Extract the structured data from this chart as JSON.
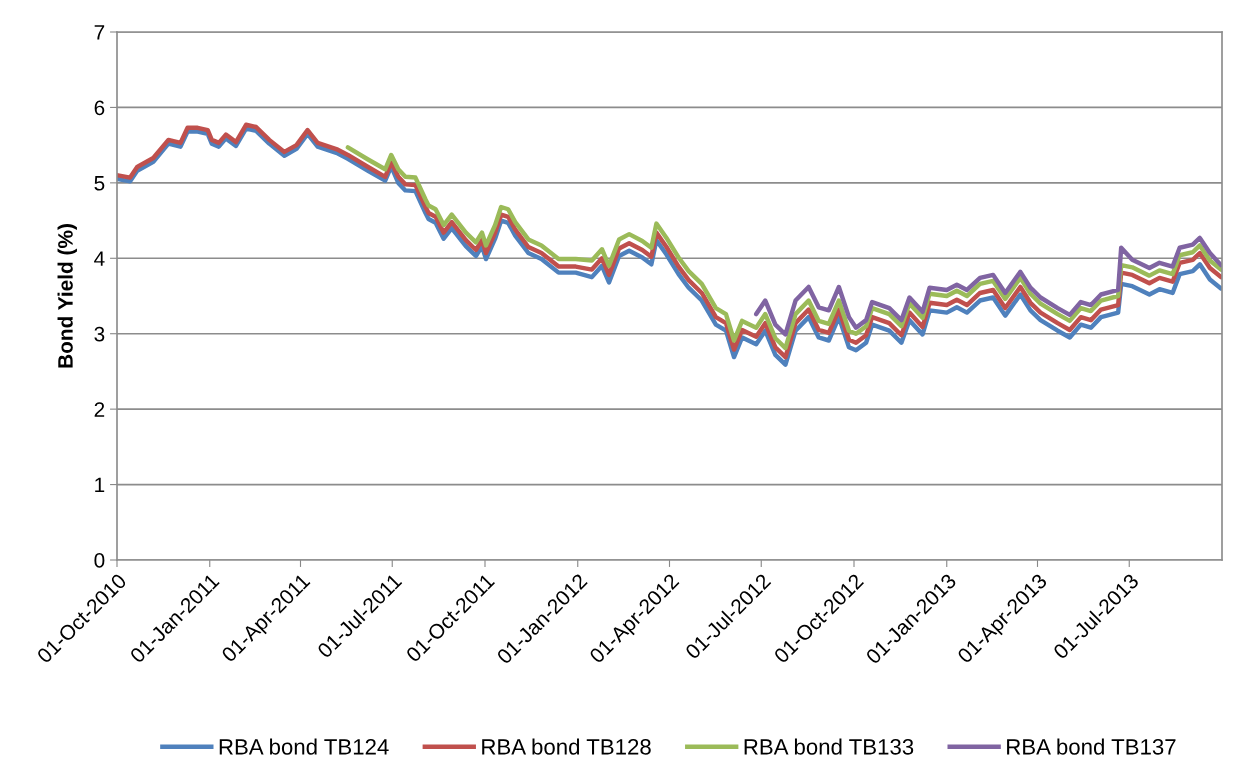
{
  "chart_data": {
    "type": "line",
    "ylabel": "Bond Yield (%)",
    "x": [
      "2010-10-02",
      "2010-10-14",
      "2010-10-21",
      "2010-11-06",
      "2010-11-21",
      "2010-12-03",
      "2010-12-10",
      "2010-12-20",
      "2010-12-30",
      "2011-01-03",
      "2011-01-10",
      "2011-01-17",
      "2011-01-27",
      "2011-02-06",
      "2011-02-16",
      "2011-03-01",
      "2011-03-16",
      "2011-03-28",
      "2011-04-08",
      "2011-04-18",
      "2011-05-08",
      "2011-05-18",
      "2011-06-07",
      "2011-06-24",
      "2011-06-30",
      "2011-07-07",
      "2011-07-14",
      "2011-07-24",
      "2011-08-03",
      "2011-08-06",
      "2011-08-13",
      "2011-08-21",
      "2011-08-29",
      "2011-09-12",
      "2011-09-22",
      "2011-09-28",
      "2011-10-02",
      "2011-10-11",
      "2011-10-17",
      "2011-10-24",
      "2011-10-31",
      "2011-11-13",
      "2011-11-26",
      "2011-12-13",
      "2011-12-30",
      "2012-01-15",
      "2012-01-25",
      "2012-02-01",
      "2012-02-11",
      "2012-02-21",
      "2012-03-05",
      "2012-03-14",
      "2012-03-19",
      "2012-03-29",
      "2012-04-10",
      "2012-04-20",
      "2012-05-03",
      "2012-05-17",
      "2012-05-27",
      "2012-06-04",
      "2012-06-12",
      "2012-06-26",
      "2012-07-05",
      "2012-07-15",
      "2012-07-25",
      "2012-08-04",
      "2012-08-17",
      "2012-08-27",
      "2012-09-06",
      "2012-09-16",
      "2012-09-26",
      "2012-10-03",
      "2012-10-13",
      "2012-10-19",
      "2012-11-05",
      "2012-11-17",
      "2012-11-25",
      "2012-12-08",
      "2012-12-15",
      "2013-01-01",
      "2013-01-11",
      "2013-01-21",
      "2013-02-03",
      "2013-02-16",
      "2013-02-28",
      "2013-03-15",
      "2013-03-25",
      "2013-04-04",
      "2013-04-21",
      "2013-05-03",
      "2013-05-14",
      "2013-05-24",
      "2013-06-03",
      "2013-06-20",
      "2013-06-23",
      "2013-07-04",
      "2013-07-21",
      "2013-07-31",
      "2013-08-13",
      "2013-08-20",
      "2013-09-02",
      "2013-09-09",
      "2013-09-19",
      "2013-09-30"
    ],
    "series": [
      {
        "name": "RBA bond TB124",
        "color": "#4f81bd",
        "values": [
          5.05,
          5.02,
          5.16,
          5.28,
          5.52,
          5.48,
          5.68,
          5.68,
          5.65,
          5.52,
          5.48,
          5.59,
          5.49,
          5.72,
          5.69,
          5.52,
          5.36,
          5.45,
          5.65,
          5.48,
          5.39,
          5.32,
          5.16,
          5.03,
          5.22,
          5.0,
          4.9,
          4.89,
          4.6,
          4.52,
          4.47,
          4.26,
          4.4,
          4.16,
          4.03,
          4.16,
          3.99,
          4.26,
          4.5,
          4.47,
          4.3,
          4.07,
          3.99,
          3.81,
          3.81,
          3.75,
          3.9,
          3.68,
          4.03,
          4.1,
          4.01,
          3.92,
          4.24,
          4.05,
          3.79,
          3.61,
          3.44,
          3.12,
          3.04,
          2.69,
          2.95,
          2.86,
          3.04,
          2.72,
          2.59,
          3.04,
          3.22,
          2.95,
          2.91,
          3.22,
          2.82,
          2.78,
          2.88,
          3.12,
          3.04,
          2.88,
          3.18,
          2.99,
          3.31,
          3.28,
          3.35,
          3.28,
          3.44,
          3.48,
          3.24,
          3.52,
          3.31,
          3.18,
          3.04,
          2.95,
          3.12,
          3.08,
          3.22,
          3.28,
          3.66,
          3.63,
          3.52,
          3.59,
          3.54,
          3.79,
          3.83,
          3.92,
          3.72,
          3.6
        ]
      },
      {
        "name": "RBA bond TB128",
        "color": "#c0504d",
        "values": [
          5.1,
          5.07,
          5.21,
          5.33,
          5.57,
          5.53,
          5.73,
          5.73,
          5.7,
          5.57,
          5.53,
          5.64,
          5.54,
          5.77,
          5.74,
          5.57,
          5.41,
          5.5,
          5.7,
          5.53,
          5.44,
          5.37,
          5.21,
          5.08,
          5.27,
          5.08,
          4.98,
          4.97,
          4.68,
          4.6,
          4.55,
          4.34,
          4.48,
          4.24,
          4.11,
          4.24,
          4.07,
          4.34,
          4.58,
          4.55,
          4.38,
          4.15,
          4.07,
          3.89,
          3.89,
          3.85,
          4.0,
          3.78,
          4.13,
          4.2,
          4.11,
          4.02,
          4.34,
          4.15,
          3.89,
          3.71,
          3.54,
          3.22,
          3.14,
          2.79,
          3.05,
          2.96,
          3.14,
          2.82,
          2.69,
          3.14,
          3.32,
          3.05,
          3.01,
          3.32,
          2.92,
          2.88,
          2.98,
          3.22,
          3.14,
          2.98,
          3.28,
          3.09,
          3.41,
          3.38,
          3.45,
          3.38,
          3.54,
          3.58,
          3.34,
          3.62,
          3.41,
          3.28,
          3.14,
          3.05,
          3.22,
          3.18,
          3.32,
          3.38,
          3.81,
          3.78,
          3.67,
          3.74,
          3.69,
          3.94,
          3.98,
          4.07,
          3.87,
          3.75
        ]
      },
      {
        "name": "RBA bond TB133",
        "color": "#9bbb59",
        "values": [
          null,
          null,
          null,
          null,
          null,
          null,
          null,
          null,
          null,
          null,
          null,
          null,
          null,
          null,
          null,
          null,
          null,
          null,
          null,
          null,
          null,
          5.47,
          5.31,
          5.18,
          5.37,
          5.18,
          5.08,
          5.07,
          4.78,
          4.7,
          4.65,
          4.44,
          4.58,
          4.34,
          4.21,
          4.34,
          4.17,
          4.44,
          4.68,
          4.65,
          4.48,
          4.25,
          4.17,
          3.99,
          3.99,
          3.97,
          4.12,
          3.9,
          4.25,
          4.32,
          4.23,
          4.14,
          4.46,
          4.27,
          4.01,
          3.83,
          3.66,
          3.34,
          3.26,
          2.91,
          3.17,
          3.08,
          3.26,
          2.94,
          2.81,
          3.26,
          3.44,
          3.17,
          3.13,
          3.44,
          3.04,
          3.0,
          3.1,
          3.34,
          3.26,
          3.1,
          3.4,
          3.21,
          3.53,
          3.5,
          3.57,
          3.5,
          3.66,
          3.7,
          3.46,
          3.74,
          3.53,
          3.4,
          3.26,
          3.17,
          3.34,
          3.3,
          3.44,
          3.5,
          3.91,
          3.88,
          3.77,
          3.84,
          3.79,
          4.04,
          4.08,
          4.17,
          3.97,
          3.85
        ]
      },
      {
        "name": "RBA bond TB137",
        "color": "#8064a2",
        "values": [
          null,
          null,
          null,
          null,
          null,
          null,
          null,
          null,
          null,
          null,
          null,
          null,
          null,
          null,
          null,
          null,
          null,
          null,
          null,
          null,
          null,
          null,
          null,
          null,
          null,
          null,
          null,
          null,
          null,
          null,
          null,
          null,
          null,
          null,
          null,
          null,
          null,
          null,
          null,
          null,
          null,
          null,
          null,
          null,
          null,
          null,
          null,
          null,
          null,
          null,
          null,
          null,
          null,
          null,
          null,
          null,
          null,
          null,
          null,
          null,
          null,
          3.26,
          3.44,
          3.12,
          2.99,
          3.44,
          3.62,
          3.35,
          3.31,
          3.62,
          3.22,
          3.08,
          3.18,
          3.42,
          3.34,
          3.18,
          3.48,
          3.29,
          3.61,
          3.58,
          3.65,
          3.58,
          3.74,
          3.78,
          3.54,
          3.82,
          3.61,
          3.48,
          3.34,
          3.25,
          3.42,
          3.38,
          3.52,
          3.58,
          4.14,
          3.98,
          3.87,
          3.94,
          3.89,
          4.14,
          4.18,
          4.27,
          4.07,
          3.91
        ]
      }
    ],
    "xlim": [
      "2010-10-01",
      "2013-10-01"
    ],
    "xticks": [
      {
        "value": "2010-10-01",
        "label": "01-Oct-2010"
      },
      {
        "value": "2011-01-01",
        "label": "01-Jan-2011"
      },
      {
        "value": "2011-04-01",
        "label": "01-Apr-2011"
      },
      {
        "value": "2011-07-01",
        "label": "01-Jul-2011"
      },
      {
        "value": "2011-10-01",
        "label": "01-Oct-2011"
      },
      {
        "value": "2012-01-01",
        "label": "01-Jan-2012"
      },
      {
        "value": "2012-04-01",
        "label": "01-Apr-2012"
      },
      {
        "value": "2012-07-01",
        "label": "01-Jul-2012"
      },
      {
        "value": "2012-10-01",
        "label": "01-Oct-2012"
      },
      {
        "value": "2013-01-01",
        "label": "01-Jan-2013"
      },
      {
        "value": "2013-04-01",
        "label": "01-Apr-2013"
      },
      {
        "value": "2013-07-01",
        "label": "01-Jul-2013"
      }
    ],
    "ylim": [
      0,
      7
    ],
    "yticks": [
      0,
      1,
      2,
      3,
      4,
      5,
      6,
      7
    ],
    "grid": "y",
    "legend": "bottom",
    "marker": "none",
    "line_style": "solid"
  }
}
